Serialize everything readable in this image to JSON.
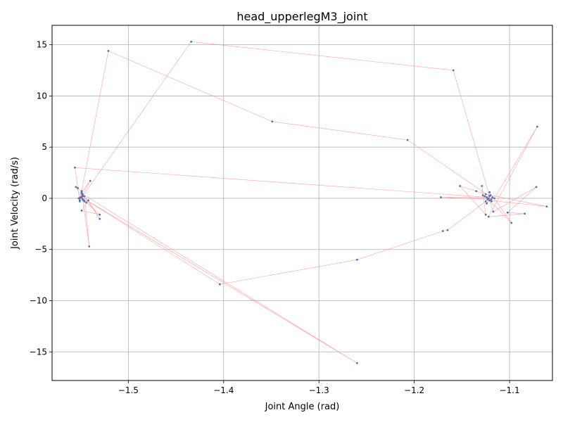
{
  "chart_data": {
    "type": "scatter",
    "title": "head_upperlegM3_joint",
    "xlabel": "Joint Angle (rad)",
    "ylabel": "Joint Velocity (rad/s)",
    "xlim": [
      -1.58,
      -1.055
    ],
    "ylim": [
      -17.8,
      16.9
    ],
    "xticks": [
      -1.5,
      -1.4,
      -1.3,
      -1.2,
      -1.1
    ],
    "xtick_labels": [
      "−1.5",
      "−1.4",
      "−1.3",
      "−1.2",
      "−1.1"
    ],
    "yticks": [
      -15,
      -10,
      -5,
      0,
      5,
      10,
      15
    ],
    "ytick_labels": [
      "−15",
      "−10",
      "−5",
      "0",
      "5",
      "10",
      "15"
    ],
    "grid": true,
    "legend": "none",
    "colors": {
      "points": "#4c72b0",
      "trajectory": "#ff8080",
      "grid": "#b0b0b0"
    },
    "series": [
      {
        "connected": true,
        "points": [
          [
            -1.552,
            0.0
          ],
          [
            -1.549,
            0.5
          ],
          [
            -1.551,
            -0.2
          ],
          [
            -1.548,
            0.3
          ],
          [
            -1.55,
            0.1
          ],
          [
            -1.546,
            -0.3
          ],
          [
            -1.549,
            0.7
          ],
          [
            -1.555,
            1.1
          ],
          [
            -1.548,
            -0.1
          ],
          [
            -1.544,
            -0.4
          ],
          [
            -1.53,
            -1.6
          ],
          [
            -1.549,
            -1.2
          ],
          [
            -1.542,
            -0.2
          ],
          [
            -1.53,
            -2.0
          ],
          [
            -1.546,
            0.2
          ],
          [
            -1.541,
            -4.7
          ],
          [
            -1.549,
            0.6
          ],
          [
            -1.54,
            1.7
          ],
          [
            -1.548,
            0.4
          ],
          [
            -1.26,
            -16.1
          ],
          [
            -1.549,
            0.1
          ],
          [
            -1.404,
            -8.4
          ],
          [
            -1.26,
            -6.0
          ],
          [
            -1.17,
            -3.2
          ],
          [
            -1.165,
            -3.1
          ],
          [
            -1.125,
            -0.3
          ],
          [
            -1.121,
            0.6
          ],
          [
            -1.118,
            0.1
          ],
          [
            -1.124,
            -0.5
          ],
          [
            -1.12,
            0.3
          ],
          [
            -1.123,
            -0.1
          ],
          [
            -1.119,
            -0.3
          ],
          [
            -1.126,
            0.2
          ],
          [
            -1.122,
            0.0
          ],
          [
            -1.117,
            -1.3
          ],
          [
            -1.072,
            1.1
          ],
          [
            -1.102,
            -1.4
          ],
          [
            -1.084,
            -1.5
          ],
          [
            -1.122,
            -1.8
          ],
          [
            -1.071,
            7.0
          ],
          [
            -1.116,
            0.0
          ],
          [
            -1.098,
            -2.4
          ],
          [
            -1.121,
            -0.2
          ],
          [
            -1.061,
            -0.8
          ],
          [
            -1.125,
            0.4
          ],
          [
            -1.135,
            0.7
          ],
          [
            -1.152,
            1.2
          ],
          [
            -1.125,
            -1.6
          ],
          [
            -1.129,
            1.2
          ],
          [
            -1.128,
            0.3
          ],
          [
            -1.119,
            -0.1
          ],
          [
            -1.172,
            0.1
          ],
          [
            -1.124,
            0.1
          ],
          [
            -1.556,
            3.0
          ],
          [
            -1.553,
            1.0
          ],
          [
            -1.551,
            -0.3
          ],
          [
            -1.521,
            14.4
          ],
          [
            -1.349,
            7.5
          ],
          [
            -1.207,
            5.7
          ],
          [
            -1.121,
            0.2
          ],
          [
            -1.159,
            12.5
          ],
          [
            -1.434,
            15.3
          ],
          [
            -1.548,
            0.2
          ],
          [
            -1.551,
            0.0
          ],
          [
            -1.547,
            -0.2
          ]
        ]
      }
    ]
  }
}
